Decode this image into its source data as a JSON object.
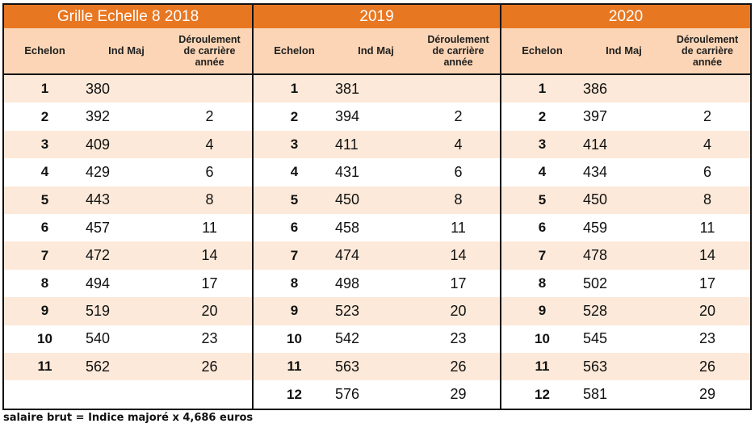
{
  "sections": [
    {
      "title": "Grille Echelle  8 2018"
    },
    {
      "title": "2019"
    },
    {
      "title": "2020"
    }
  ],
  "headers": {
    "echelon": "Echelon",
    "ind_maj": "Ind Maj",
    "deroulement_line1": "Déroulement",
    "deroulement_line2": "de carrière",
    "deroulement_line3": "année"
  },
  "rows": [
    {
      "e2018": "1",
      "i2018": "380",
      "d2018": "",
      "e2019": "1",
      "i2019": "381",
      "d2019": "",
      "e2020": "1",
      "i2020": "386",
      "d2020": ""
    },
    {
      "e2018": "2",
      "i2018": "392",
      "d2018": "2",
      "e2019": "2",
      "i2019": "394",
      "d2019": "2",
      "e2020": "2",
      "i2020": "397",
      "d2020": "2"
    },
    {
      "e2018": "3",
      "i2018": "409",
      "d2018": "4",
      "e2019": "3",
      "i2019": "411",
      "d2019": "4",
      "e2020": "3",
      "i2020": "414",
      "d2020": "4"
    },
    {
      "e2018": "4",
      "i2018": "429",
      "d2018": "6",
      "e2019": "4",
      "i2019": "431",
      "d2019": "6",
      "e2020": "4",
      "i2020": "434",
      "d2020": "6"
    },
    {
      "e2018": "5",
      "i2018": "443",
      "d2018": "8",
      "e2019": "5",
      "i2019": "450",
      "d2019": "8",
      "e2020": "5",
      "i2020": "450",
      "d2020": "8"
    },
    {
      "e2018": "6",
      "i2018": "457",
      "d2018": "11",
      "e2019": "6",
      "i2019": "458",
      "d2019": "11",
      "e2020": "6",
      "i2020": "459",
      "d2020": "11"
    },
    {
      "e2018": "7",
      "i2018": "472",
      "d2018": "14",
      "e2019": "7",
      "i2019": "474",
      "d2019": "14",
      "e2020": "7",
      "i2020": "478",
      "d2020": "14"
    },
    {
      "e2018": "8",
      "i2018": "494",
      "d2018": "17",
      "e2019": "8",
      "i2019": "498",
      "d2019": "17",
      "e2020": "8",
      "i2020": "502",
      "d2020": "17"
    },
    {
      "e2018": "9",
      "i2018": "519",
      "d2018": "20",
      "e2019": "9",
      "i2019": "523",
      "d2019": "20",
      "e2020": "9",
      "i2020": "528",
      "d2020": "20"
    },
    {
      "e2018": "10",
      "i2018": "540",
      "d2018": "23",
      "e2019": "10",
      "i2019": "542",
      "d2019": "23",
      "e2020": "10",
      "i2020": "545",
      "d2020": "23"
    },
    {
      "e2018": "11",
      "i2018": "562",
      "d2018": "26",
      "e2019": "11",
      "i2019": "563",
      "d2019": "26",
      "e2020": "11",
      "i2020": "563",
      "d2020": "26"
    },
    {
      "e2018": "",
      "i2018": "",
      "d2018": "",
      "e2019": "12",
      "i2019": "576",
      "d2019": "29",
      "e2020": "12",
      "i2020": "581",
      "d2020": "29"
    }
  ],
  "footnote": "salaire brut = Indice majoré x 4,686 euros",
  "colors": {
    "title_bg": "#e87722",
    "header_bg": "#fbd5b5",
    "odd_row_bg": "#fde9d9",
    "even_row_bg": "#ffffff"
  }
}
